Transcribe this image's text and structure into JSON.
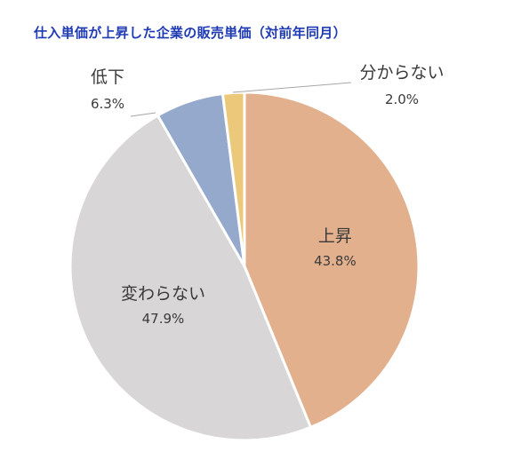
{
  "chart_data": {
    "type": "pie",
    "title": "仕入単価が上昇した企業の販売単価（対前年同月）",
    "unit": "%",
    "slices": [
      {
        "name": "上昇",
        "value": 43.8,
        "value_label": "43.8%",
        "color": "#e3b08e",
        "label_position": "inside"
      },
      {
        "name": "変わらない",
        "value": 47.9,
        "value_label": "47.9%",
        "color": "#d8d6d6",
        "label_position": "inside"
      },
      {
        "name": "低下",
        "value": 6.3,
        "value_label": "6.3%",
        "color": "#95a9cc",
        "label_position": "outside-left"
      },
      {
        "name": "分からない",
        "value": 2.0,
        "value_label": "2.0%",
        "color": "#ecc87a",
        "label_position": "outside-right"
      }
    ],
    "start": "12 o'clock",
    "direction": "clockwise",
    "legend": "none"
  }
}
